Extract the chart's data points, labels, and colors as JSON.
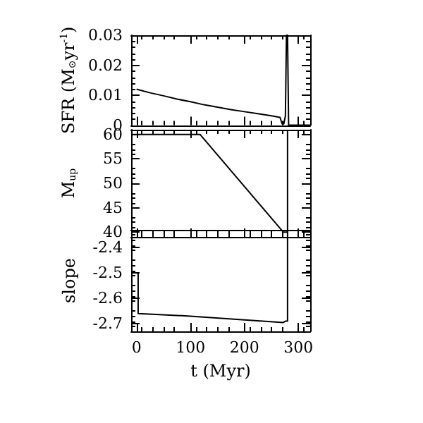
{
  "chart_data": [
    {
      "type": "line",
      "ylabel": "SFR (M$_{⊙}$yr$^{-1}$)",
      "xlim": [
        -10,
        322
      ],
      "xticks": [
        0,
        100,
        200,
        300
      ],
      "ylim": [
        0,
        0.03
      ],
      "yticks": [
        0,
        0.01,
        0.02,
        0.03
      ],
      "tick_labels": "y",
      "grid": false,
      "legend": false,
      "marker": "none",
      "series": [
        {
          "color": "#000000",
          "x": [
            0,
            25,
            50,
            75,
            100,
            125,
            150,
            175,
            200,
            225,
            250,
            266,
            270,
            273,
            276,
            278,
            280,
            282,
            290,
            322
          ],
          "values": [
            0.012,
            0.0108,
            0.0098,
            0.0087,
            0.0078,
            0.0068,
            0.006,
            0.0052,
            0.0045,
            0.0038,
            0.0031,
            0.0026,
            0.0004,
            0.0004,
            0.003,
            0.03,
            0.03,
            0,
            0,
            0
          ]
        }
      ]
    },
    {
      "type": "line",
      "ylabel": "M$_{up}$",
      "xlim": [
        -10,
        322
      ],
      "xticks": [
        0,
        100,
        200,
        300
      ],
      "ylim": [
        39,
        61
      ],
      "yticks": [
        40,
        45,
        50,
        55,
        60
      ],
      "tick_labels": "y",
      "grid": false,
      "legend": false,
      "marker": "none",
      "series": [
        {
          "color": "#000000",
          "x": [
            -10,
            118,
            272,
            280,
            280
          ],
          "values": [
            60,
            60,
            40,
            40,
            61
          ]
        }
      ]
    },
    {
      "type": "line",
      "xlabel": "t (Myr)",
      "ylabel": "slope",
      "xlim": [
        -10,
        322
      ],
      "xticks": [
        0,
        100,
        200,
        300
      ],
      "ylim": [
        -2.73,
        -2.33
      ],
      "yticks": [
        -2.7,
        -2.6,
        -2.5,
        -2.4
      ],
      "grid": false,
      "legend": false,
      "marker": "none",
      "series": [
        {
          "color": "#000000",
          "x": [
            0,
            3,
            3,
            100,
            200,
            272,
            276,
            280,
            280
          ],
          "values": [
            -2.5,
            -2.5,
            -2.66,
            -2.67,
            -2.685,
            -2.695,
            -2.69,
            -2.69,
            -2.33
          ]
        }
      ]
    }
  ]
}
